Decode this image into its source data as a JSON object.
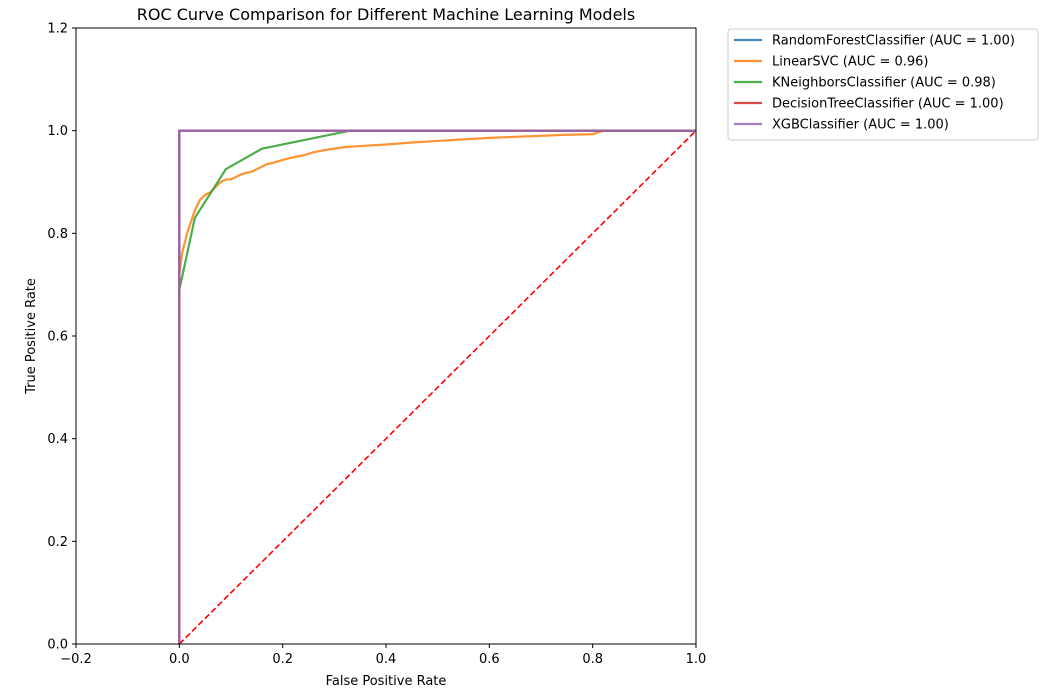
{
  "chart_data": {
    "type": "line",
    "title": "ROC Curve Comparison for Different Machine Learning Models",
    "xlabel": "False Positive Rate",
    "ylabel": "True Positive Rate",
    "xlim": [
      -0.2,
      1.0
    ],
    "ylim": [
      0.0,
      1.2
    ],
    "xticks": [
      "−0.2",
      "0.0",
      "0.2",
      "0.4",
      "0.6",
      "0.8",
      "1.0"
    ],
    "xtick_values": [
      -0.2,
      0.0,
      0.2,
      0.4,
      0.6,
      0.8,
      1.0
    ],
    "yticks": [
      "0.0",
      "0.2",
      "0.4",
      "0.6",
      "0.8",
      "1.0",
      "1.2"
    ],
    "ytick_values": [
      0.0,
      0.2,
      0.4,
      0.6,
      0.8,
      1.0,
      1.2
    ],
    "grid": false,
    "legend_position": "outside-top-right",
    "series": [
      {
        "name": "RandomForestClassifier (AUC = 1.00)",
        "color": "#1f77b4",
        "x": [
          0.0,
          0.0,
          0.0,
          1.0
        ],
        "y": [
          0.0,
          0.69,
          1.0,
          1.0
        ]
      },
      {
        "name": "LinearSVC (AUC = 0.96)",
        "color": "#ff7f0e",
        "x": [
          0.0,
          0.0,
          0.005,
          0.01,
          0.015,
          0.02,
          0.025,
          0.03,
          0.035,
          0.04,
          0.045,
          0.05,
          0.06,
          0.07,
          0.08,
          0.09,
          0.1,
          0.11,
          0.12,
          0.13,
          0.14,
          0.15,
          0.16,
          0.17,
          0.18,
          0.19,
          0.2,
          0.22,
          0.24,
          0.26,
          0.28,
          0.3,
          0.32,
          0.35,
          0.4,
          0.45,
          0.5,
          0.55,
          0.6,
          0.65,
          0.7,
          0.75,
          0.8,
          0.82,
          1.0
        ],
        "y": [
          0.0,
          0.72,
          0.76,
          0.78,
          0.8,
          0.815,
          0.83,
          0.845,
          0.855,
          0.865,
          0.87,
          0.875,
          0.88,
          0.89,
          0.9,
          0.905,
          0.905,
          0.91,
          0.915,
          0.918,
          0.92,
          0.925,
          0.93,
          0.935,
          0.937,
          0.94,
          0.943,
          0.948,
          0.952,
          0.958,
          0.962,
          0.965,
          0.968,
          0.97,
          0.973,
          0.977,
          0.98,
          0.983,
          0.986,
          0.988,
          0.99,
          0.992,
          0.993,
          1.0,
          1.0
        ]
      },
      {
        "name": "KNeighborsClassifier (AUC = 0.98)",
        "color": "#2ca02c",
        "x": [
          0.0,
          0.0,
          0.03,
          0.09,
          0.16,
          0.33,
          1.0
        ],
        "y": [
          0.0,
          0.69,
          0.83,
          0.925,
          0.965,
          1.0,
          1.0
        ]
      },
      {
        "name": "DecisionTreeClassifier (AUC = 1.00)",
        "color": "#d62728",
        "x": [
          0.0,
          0.0,
          1.0
        ],
        "y": [
          0.0,
          1.0,
          1.0
        ]
      },
      {
        "name": "XGBClassifier (AUC = 1.00)",
        "color": "#9467bd",
        "x": [
          0.0,
          0.0,
          0.0,
          1.0
        ],
        "y": [
          0.0,
          0.69,
          1.0,
          1.0
        ]
      }
    ],
    "reference_line": {
      "color": "#ff0000",
      "style": "dashed",
      "x": [
        0.0,
        1.0
      ],
      "y": [
        0.0,
        1.0
      ]
    }
  }
}
